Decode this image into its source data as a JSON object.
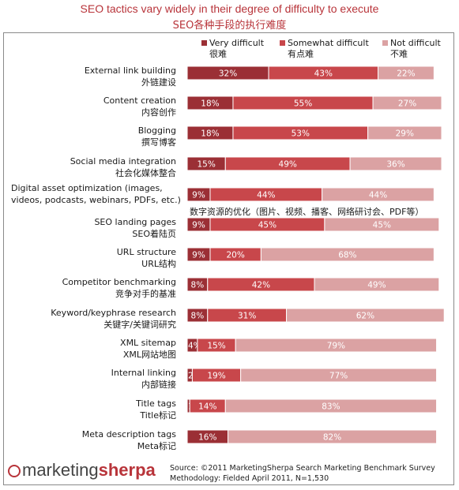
{
  "title": "SEO tactics vary widely in their degree of difficulty to execute",
  "title_cn": "SEO各种手段的执行难度",
  "chart_data": {
    "type": "bar",
    "stacked": true,
    "orientation": "horizontal",
    "title": "SEO tactics vary widely in their degree of difficulty to execute",
    "subtitle": "SEO各种手段的执行难度",
    "legend_placement": "top",
    "categories": [
      "External link building",
      "Content creation",
      "Blogging",
      "Social media integration",
      "Digital asset optimization (images, videos, podcasts, webinars, PDFs, etc.)",
      "SEO landing pages",
      "URL structure",
      "Competitor benchmarking",
      "Keyword/keyphrase research",
      "XML sitemap",
      "Internal linking",
      "Title tags",
      "Meta description tags"
    ],
    "categories_cn": [
      "外链建设",
      "内容创作",
      "撰写博客",
      "社会化媒体整合",
      "数字资源的优化（图片、视频、播客、网络研讨会、PDF等）",
      "SEO着陆页",
      "URL结构",
      "竞争对手的基准",
      "关键字/关键词研究",
      "XML网站地图",
      "内部链接",
      "Title标记",
      "Meta标记"
    ],
    "series": [
      {
        "name": "Very difficult",
        "name_cn": "很难",
        "color": "#9b2f35",
        "values": [
          32,
          18,
          18,
          15,
          9,
          9,
          9,
          8,
          8,
          4,
          2,
          1,
          16
        ]
      },
      {
        "name": "Somewhat difficult",
        "name_cn": "有点难",
        "color": "#c8474b",
        "values": [
          43,
          55,
          53,
          49,
          44,
          45,
          20,
          42,
          31,
          15,
          19,
          14,
          0
        ]
      },
      {
        "name": "Not difficult",
        "name_cn": "不难",
        "color": "#dba2a3",
        "values": [
          22,
          27,
          29,
          36,
          44,
          45,
          68,
          49,
          62,
          79,
          77,
          83,
          82
        ]
      }
    ],
    "xlim": [
      0,
      100
    ],
    "grid": false
  },
  "footer": {
    "logo_prefix": "marketing",
    "logo_brand": "sherpa",
    "source_line1": "Source: ©2011 MarketingSherpa Search Marketing Benchmark Survey",
    "source_line2": "Methodology: Fielded April 2011, N=1,530"
  }
}
